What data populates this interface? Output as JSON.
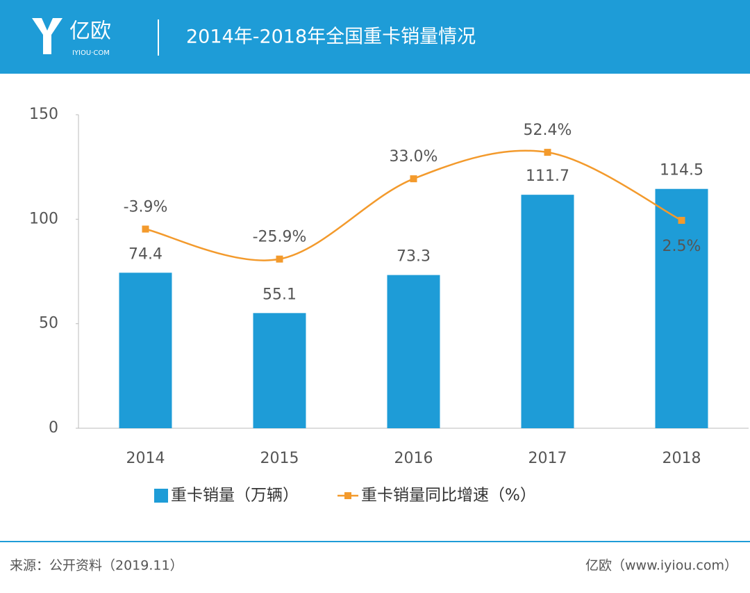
{
  "header": {
    "logo": "亿欧",
    "logo_sub": "IYIOU·COM"
  },
  "chart_data": {
    "type": "combo",
    "title": "2014年-2018年全国重卡销量情况",
    "categories": [
      "2014",
      "2015",
      "2016",
      "2017",
      "2018"
    ],
    "series": [
      {
        "name": "重卡销量（万辆）",
        "type": "bar",
        "color": "#1e9cd7",
        "values": [
          74.4,
          55.1,
          73.3,
          111.7,
          114.5
        ]
      },
      {
        "name": "重卡销量同比增速（%）",
        "type": "line",
        "axis": "y2",
        "color": "#f39a2c",
        "values": [
          -3.9,
          -25.9,
          33.0,
          52.4,
          2.5
        ],
        "value_labels": [
          "-3.9%",
          "-25.9%",
          "33.0%",
          "52.4%",
          "2.5%"
        ]
      }
    ],
    "ylim": [
      0,
      150
    ],
    "yticks": [
      0,
      50,
      100,
      150
    ],
    "y2lim": [
      -150,
      80
    ],
    "legend": "bottom"
  },
  "footer": {
    "source": "来源：公开资料（2019.11）",
    "credit": "亿欧（www.iyiou.com）"
  }
}
